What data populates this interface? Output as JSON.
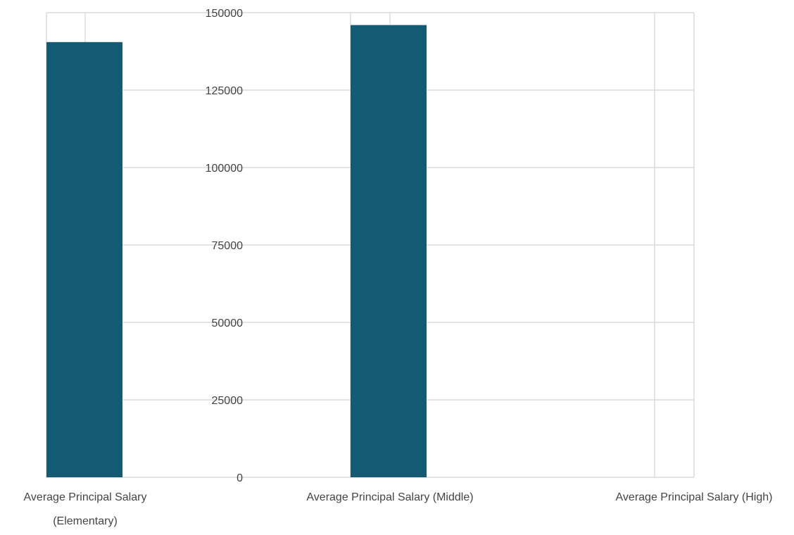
{
  "chart_data": {
    "type": "bar",
    "categories": [
      "Average Principal Salary (Elementary)",
      "Average Principal Salary (Middle)",
      "Average Principal Salary (High)"
    ],
    "category_label_lines": [
      [
        "Average Principal Salary",
        "(Elementary)"
      ],
      [
        "Average Principal Salary (Middle)"
      ],
      [
        "Average Principal Salary (High)"
      ]
    ],
    "values": [
      140500,
      146000,
      null
    ],
    "ylim": [
      0,
      150000
    ],
    "yticks": [
      "0",
      "25000",
      "50000",
      "75000",
      "100000",
      "125000",
      "150000"
    ],
    "grid": true,
    "title": "",
    "xlabel": "",
    "ylabel": "",
    "colors": {
      "bar": "#145a73",
      "grid": "#dcdcdc",
      "text": "#444444"
    }
  }
}
